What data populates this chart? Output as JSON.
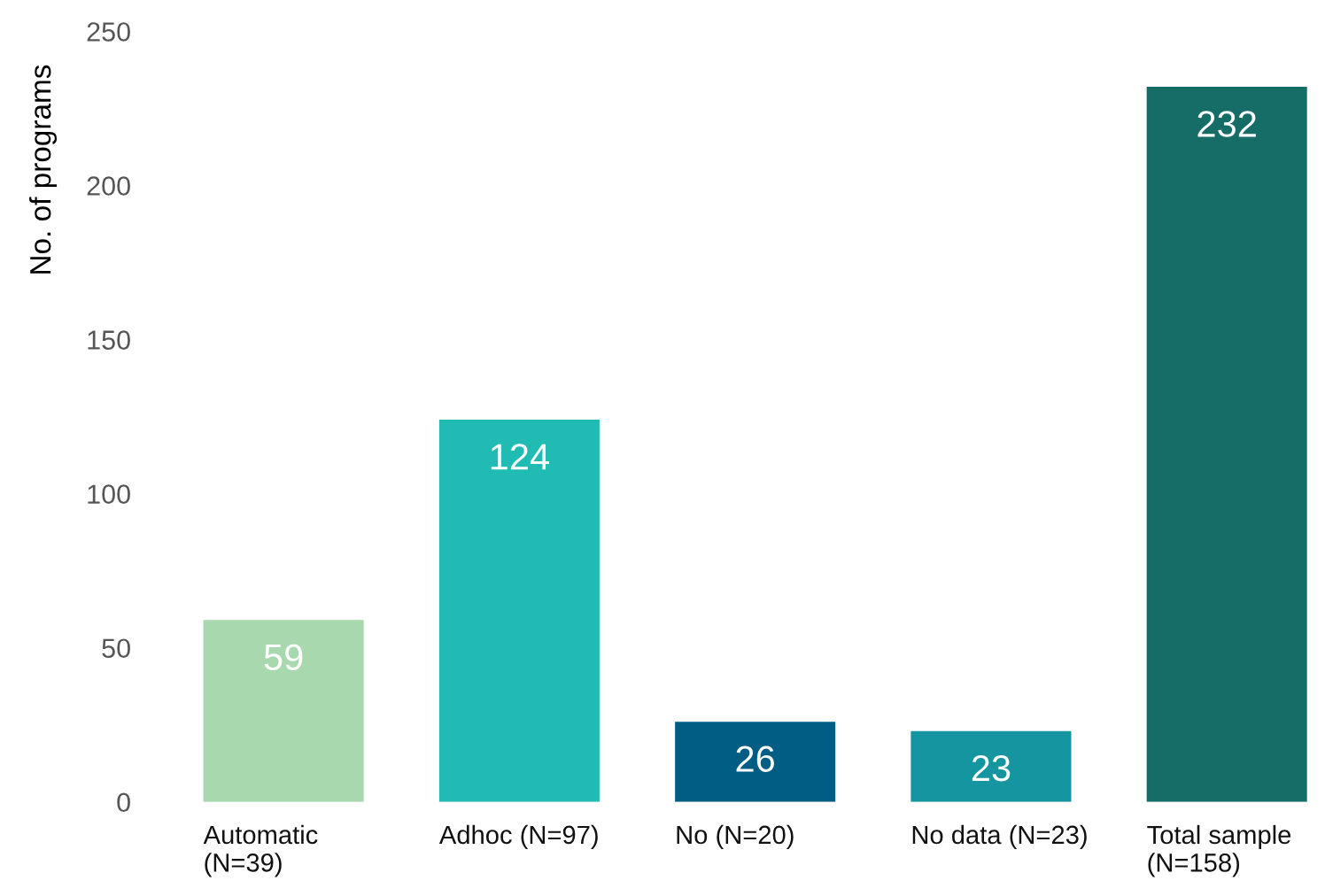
{
  "chart_data": {
    "type": "bar",
    "ylabel": "No. of programs",
    "categories": [
      "Automatic\n(N=39)",
      "Adhoc (N=97)",
      "No (N=20)",
      "No data (N=23)",
      "Total sample\n(N=158)"
    ],
    "values": [
      59,
      124,
      26,
      23,
      232
    ],
    "colors": [
      "#a8d8ae",
      "#20bcb4",
      "#005e85",
      "#1495a0",
      "#166d68"
    ],
    "ylim": [
      0,
      250
    ],
    "yticks": [
      0,
      50,
      100,
      150,
      200,
      250
    ],
    "grid": false,
    "data_labels": true
  }
}
